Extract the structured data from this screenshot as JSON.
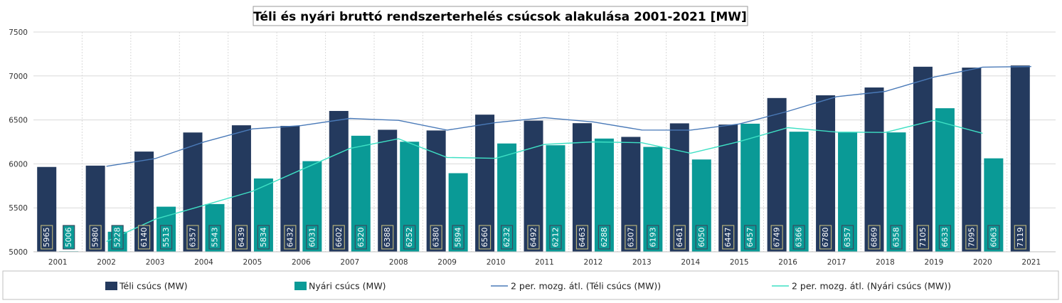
{
  "chart_data": {
    "type": "bar",
    "title": "Téli és nyári bruttó rendszerterhelés csúcsok alakulása 2001-2021  [MW]",
    "categories": [
      "2001",
      "2002",
      "2003",
      "2004",
      "2005",
      "2006",
      "2007",
      "2008",
      "2009",
      "2010",
      "2011",
      "2012",
      "2013",
      "2014",
      "2015",
      "2016",
      "2017",
      "2018",
      "2019",
      "2020",
      "2021"
    ],
    "ylim": [
      5000,
      7500
    ],
    "yticks": [
      5000,
      5500,
      6000,
      6500,
      7000,
      7500
    ],
    "xlabel": "",
    "ylabel": "",
    "grid": true,
    "legend_position": "bottom",
    "series": [
      {
        "name": "Téli csúcs (MW)",
        "kind": "bar",
        "color": "#243a5e",
        "values": [
          5965,
          5980,
          6140,
          6357,
          6439,
          6432,
          6602,
          6388,
          6380,
          6560,
          6492,
          6463,
          6307,
          6461,
          6447,
          6749,
          6780,
          6869,
          7105,
          7095,
          7119
        ]
      },
      {
        "name": "Nyári csúcs (MW)",
        "kind": "bar",
        "color": "#0a9a96",
        "values": [
          5006,
          5228,
          5513,
          5543,
          5834,
          6031,
          6320,
          6252,
          5894,
          6232,
          6212,
          6288,
          6193,
          6050,
          6457,
          6366,
          6357,
          6358,
          6633,
          6063,
          null
        ]
      },
      {
        "name": "2 per. mozg. átl. (Téli csúcs (MW))",
        "kind": "line",
        "color": "#4a7ab8",
        "values": [
          null,
          5972.5,
          6060,
          6248.5,
          6398,
          6435.5,
          6517,
          6495,
          6384,
          6470,
          6526,
          6477.5,
          6385,
          6384,
          6454,
          6598,
          6764.5,
          6824.5,
          6987,
          7100,
          7107
        ]
      },
      {
        "name": "2 per. mozg. átl. (Nyári csúcs (MW))",
        "kind": "line",
        "color": "#3ee0c4",
        "values": [
          null,
          5117,
          5370.5,
          5528,
          5688.5,
          5932.5,
          6175.5,
          6286,
          6073,
          6063,
          6222,
          6250,
          6240.5,
          6121.5,
          6253.5,
          6411.5,
          6361.5,
          6357.5,
          6495.5,
          6348,
          null
        ]
      }
    ]
  }
}
